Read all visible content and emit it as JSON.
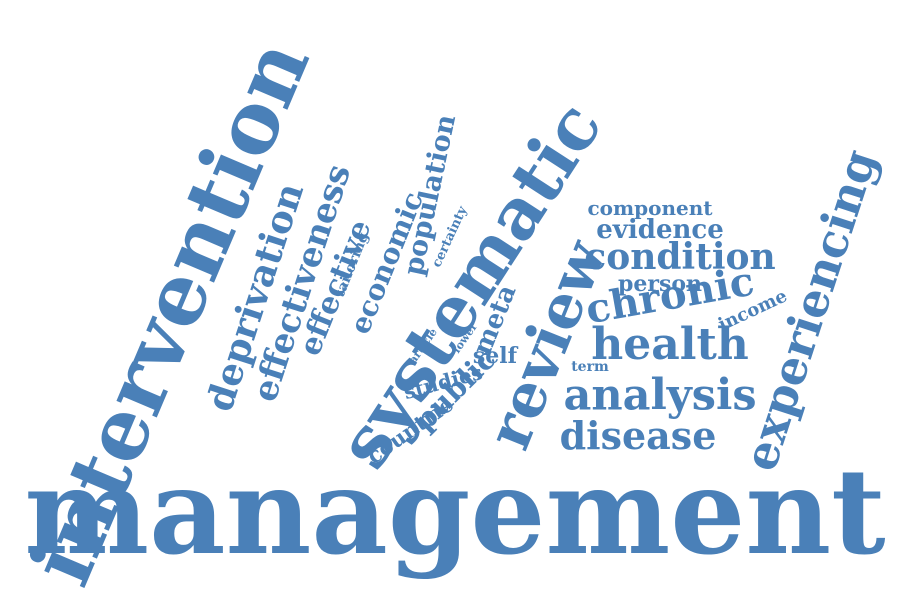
{
  "word_cloud": {
    "color": "#4a80b8",
    "background": "#ffffff",
    "words": {
      "management": "management",
      "intervention": "intervention",
      "systematic": "systematic",
      "review": "review",
      "experiencing": "experiencing",
      "health": "health",
      "analysis": "analysis",
      "disease": "disease",
      "chronic": "chronic",
      "effectiveness": "effectiveness",
      "deprivation": "deprivation",
      "condition": "condition",
      "effective": "effective",
      "economic": "economic",
      "public": "public",
      "population": "population",
      "evidence": "evidence",
      "person": "person",
      "meta": "meta",
      "countrie": "countrie",
      "self": "self",
      "studies": "studies",
      "component": "component",
      "income": "income",
      "tailoring": "tailoring",
      "certainty": "certainty",
      "term": "term",
      "article": "article",
      "lower": "lower"
    }
  }
}
